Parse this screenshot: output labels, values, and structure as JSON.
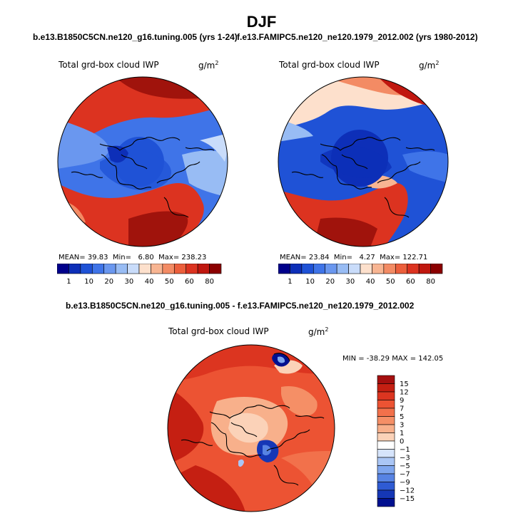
{
  "figure": {
    "season_title": "DJF",
    "diff_title": "b.e13.B1850C5CN.ne120_g16.tuning.005 - f.e13.FAMIPC5.ne120_ne120.1979_2012.002"
  },
  "panels": [
    {
      "case_label": "b.e13.B1850C5CN.ne120_g16.tuning.005 (yrs 1-24)",
      "var_title": "Total grd-box cloud IWP",
      "units": "g/m",
      "units_sup": "2",
      "mean_label": "MEAN=",
      "mean": "39.83",
      "min_label": "Min=",
      "min": "6.80",
      "max_label": "Max=",
      "max": "238.23"
    },
    {
      "case_label": "f.e13.FAMIPC5.ne120_ne120.1979_2012.002 (yrs 1980-2012)",
      "var_title": "Total grd-box cloud IWP",
      "units": "g/m",
      "units_sup": "2",
      "mean_label": "MEAN=",
      "mean": "23.84",
      "min_label": "Min=",
      "min": "4.27",
      "max_label": "Max=",
      "max": "122.71"
    },
    {
      "var_title": "Total grd-box cloud IWP",
      "units": "g/m",
      "units_sup": "2",
      "range_text": "MIN = -38.29  MAX = 142.05"
    }
  ],
  "chart_data": [
    {
      "type": "heatmap",
      "projection": "north polar stereographic",
      "title": "Total grd-box cloud IWP",
      "units": "g/m2",
      "levels": [
        1,
        10,
        20,
        30,
        40,
        50,
        60,
        80
      ],
      "colorbar_ticks": [
        "1",
        "10",
        "20",
        "30",
        "40",
        "50",
        "60",
        "80"
      ],
      "colorbar_colors": [
        "#00008b",
        "#0d2fb8",
        "#1f52d6",
        "#3f74e8",
        "#6a97ef",
        "#98bcf4",
        "#c9dcfa",
        "#fde0cc",
        "#f8b592",
        "#f38b64",
        "#ec5f3c",
        "#dc3320",
        "#c0170f",
        "#8b0000"
      ],
      "stats": {
        "mean": 39.83,
        "min": 6.8,
        "max": 238.23
      }
    },
    {
      "type": "heatmap",
      "projection": "north polar stereographic",
      "title": "Total grd-box cloud IWP",
      "units": "g/m2",
      "levels": [
        1,
        10,
        20,
        30,
        40,
        50,
        60,
        80
      ],
      "colorbar_ticks": [
        "1",
        "10",
        "20",
        "30",
        "40",
        "50",
        "60",
        "80"
      ],
      "colorbar_colors": [
        "#00008b",
        "#0d2fb8",
        "#1f52d6",
        "#3f74e8",
        "#6a97ef",
        "#98bcf4",
        "#c9dcfa",
        "#fde0cc",
        "#f8b592",
        "#f38b64",
        "#ec5f3c",
        "#dc3320",
        "#c0170f",
        "#8b0000"
      ],
      "stats": {
        "mean": 23.84,
        "min": 4.27,
        "max": 122.71
      }
    },
    {
      "type": "heatmap",
      "projection": "north polar stereographic",
      "title": "Total grd-box cloud IWP",
      "units": "g/m2",
      "levels": [
        15,
        12,
        9,
        7,
        5,
        3,
        1,
        0,
        -1,
        -3,
        -5,
        -7,
        -9,
        -12,
        -15
      ],
      "colorbar_ticks": [
        "15",
        "12",
        "9",
        "7",
        "5",
        "3",
        "1",
        "0",
        "−1",
        "−3",
        "−5",
        "−7",
        "−9",
        "−12",
        "−15"
      ],
      "colorbar_colors": [
        "#a50f0f",
        "#c51f12",
        "#dc3520",
        "#ec5333",
        "#f2714b",
        "#f58f66",
        "#f8b08b",
        "#fbd2b8",
        "#ffffff",
        "#d6e4fb",
        "#aac6f5",
        "#7fa6ee",
        "#5783e3",
        "#2f5bd3",
        "#1537b6",
        "#00108f"
      ],
      "stats": {
        "min": -38.29,
        "max": 142.05
      }
    }
  ]
}
